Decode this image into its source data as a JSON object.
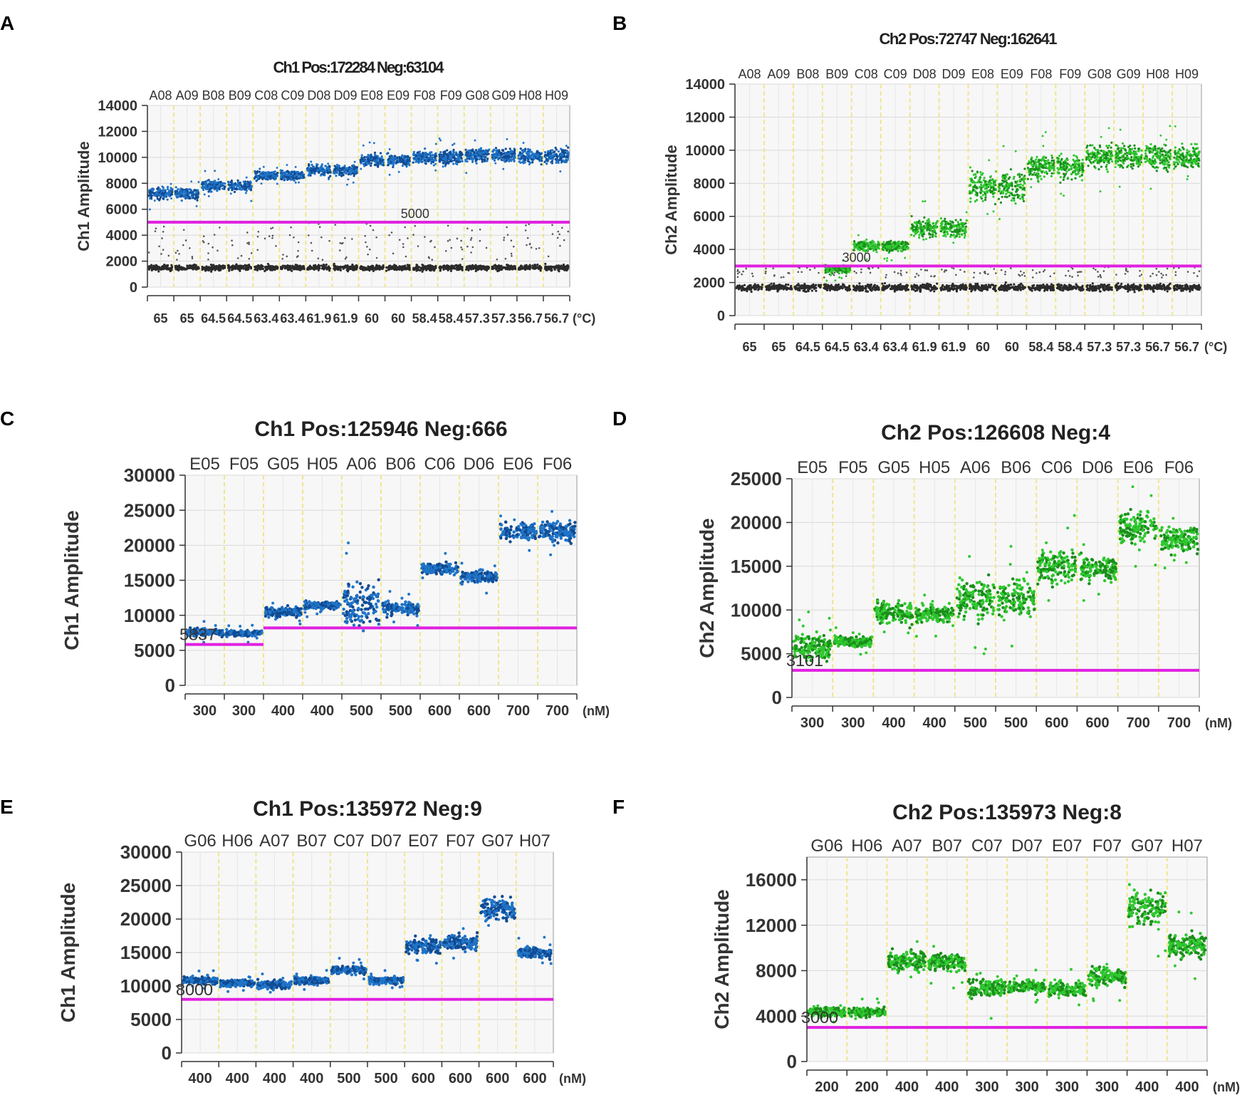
{
  "figure": {
    "panel_letters": [
      "A",
      "B",
      "C",
      "D",
      "E",
      "F"
    ]
  },
  "colors": {
    "ch1": "#1f74c8",
    "ch1_dark": "#114b93",
    "ch2": "#2fc82f",
    "ch2_dark": "#1a8e1a",
    "negative": "#2b2b2b",
    "threshold": "#e020e0",
    "well_line": "#f0e68c",
    "plot_bg": "#f7f7f7",
    "grid": "#d9d9d9"
  },
  "chart_data": [
    {
      "type": "scatter",
      "panel": "A",
      "channel": "ch1",
      "title": "Ch1 Pos:172284 Neg:63104",
      "ylabel": "Ch1 Amplitude",
      "x_unit": "(°C)",
      "ylim": [
        0,
        14000
      ],
      "yticks": [
        0,
        2000,
        4000,
        6000,
        8000,
        10000,
        12000,
        14000
      ],
      "wells": [
        "A08",
        "A09",
        "B08",
        "B09",
        "C08",
        "C09",
        "D08",
        "D09",
        "E08",
        "E09",
        "F08",
        "F09",
        "G08",
        "G09",
        "H08",
        "H09"
      ],
      "x_labels": [
        "65",
        "65",
        "64.5",
        "64.5",
        "63.4",
        "63.4",
        "61.9",
        "61.9",
        "60",
        "60",
        "58.4",
        "58.4",
        "57.3",
        "57.3",
        "56.7",
        "56.7"
      ],
      "threshold": 5000,
      "threshold_label": "5000",
      "pos_centers": [
        7200,
        7200,
        7800,
        7800,
        8600,
        8600,
        9000,
        9000,
        9800,
        9800,
        10000,
        10000,
        10200,
        10200,
        10100,
        10100
      ],
      "pos_spread": [
        1400,
        1400,
        1300,
        1300,
        1300,
        1300,
        1300,
        1300,
        1600,
        1600,
        1700,
        1700,
        1700,
        1700,
        1700,
        1700
      ],
      "neg_centers": [
        1500,
        1500,
        1500,
        1500,
        1500,
        1500,
        1500,
        1500,
        1500,
        1500,
        1500,
        1500,
        1500,
        1500,
        1500,
        1500
      ]
    },
    {
      "type": "scatter",
      "panel": "B",
      "channel": "ch2",
      "title": "Ch2 Pos:72747 Neg:162641",
      "ylabel": "Ch2 Amplitude",
      "x_unit": "(°C)",
      "ylim": [
        0,
        14000
      ],
      "yticks": [
        0,
        2000,
        4000,
        6000,
        8000,
        10000,
        12000,
        14000
      ],
      "wells": [
        "A08",
        "A09",
        "B08",
        "B09",
        "C08",
        "C09",
        "D08",
        "D09",
        "E08",
        "E09",
        "F08",
        "F09",
        "G08",
        "G09",
        "H08",
        "H09"
      ],
      "x_labels": [
        "65",
        "65",
        "64.5",
        "64.5",
        "63.4",
        "63.4",
        "61.9",
        "61.9",
        "60",
        "60",
        "58.4",
        "58.4",
        "57.3",
        "57.3",
        "56.7",
        "56.7"
      ],
      "threshold": 3000,
      "threshold_label": "3000",
      "pos_centers": [
        null,
        null,
        null,
        2800,
        4200,
        4200,
        5300,
        5300,
        7800,
        7800,
        9000,
        9000,
        9600,
        9600,
        9600,
        9600
      ],
      "pos_spread": [
        0,
        0,
        0,
        800,
        1000,
        1000,
        1800,
        1800,
        2800,
        2800,
        2400,
        2400,
        2400,
        2400,
        2600,
        2600
      ],
      "neg_centers": [
        1700,
        1700,
        1700,
        1700,
        1700,
        1700,
        1700,
        1700,
        1700,
        1700,
        1700,
        1700,
        1700,
        1700,
        1700,
        1700
      ]
    },
    {
      "type": "scatter",
      "panel": "C",
      "channel": "ch1",
      "title": "Ch1 Pos:125946 Neg:666",
      "ylabel": "Ch1 Amplitude",
      "x_unit": "(nM)",
      "ylim": [
        0,
        30000
      ],
      "yticks": [
        0,
        5000,
        10000,
        15000,
        20000,
        25000,
        30000
      ],
      "wells": [
        "E05",
        "F05",
        "G05",
        "H05",
        "A06",
        "B06",
        "C06",
        "D06",
        "E06",
        "F06"
      ],
      "x_labels": [
        "300",
        "300",
        "400",
        "400",
        "500",
        "500",
        "600",
        "600",
        "700",
        "700"
      ],
      "threshold_segments": [
        {
          "from_well": 0,
          "to_well": 2,
          "value": 5837
        },
        {
          "from_well": 2,
          "to_well": 10,
          "value": 8200
        }
      ],
      "threshold_label": "5837",
      "pos_centers": [
        7600,
        7400,
        10500,
        11400,
        11500,
        11000,
        16700,
        15400,
        22000,
        22000
      ],
      "pos_spread": [
        1800,
        1400,
        2400,
        2000,
        10000,
        3200,
        2600,
        2600,
        4200,
        4600
      ]
    },
    {
      "type": "scatter",
      "panel": "D",
      "channel": "ch2",
      "title": "Ch2 Pos:126608 Neg:4",
      "ylabel": "Ch2 Amplitude",
      "x_unit": "(nM)",
      "ylim": [
        0,
        25000
      ],
      "yticks": [
        0,
        5000,
        10000,
        15000,
        20000,
        25000
      ],
      "wells": [
        "E05",
        "F05",
        "G05",
        "H05",
        "A06",
        "B06",
        "C06",
        "D06",
        "E06",
        "F06"
      ],
      "x_labels": [
        "300",
        "300",
        "400",
        "400",
        "500",
        "500",
        "600",
        "600",
        "700",
        "700"
      ],
      "threshold": 3101,
      "threshold_label": "3101",
      "pos_centers": [
        5800,
        6400,
        9700,
        9500,
        11200,
        11500,
        15000,
        14800,
        19500,
        18000
      ],
      "pos_spread": [
        4800,
        2000,
        4000,
        3200,
        7200,
        7200,
        6600,
        5200,
        5800,
        5000
      ]
    },
    {
      "type": "scatter",
      "panel": "E",
      "channel": "ch1",
      "title": "Ch1 Pos:135972 Neg:9",
      "ylabel": "Ch1 Amplitude",
      "x_unit": "(nM)",
      "ylim": [
        0,
        30000
      ],
      "yticks": [
        0,
        5000,
        10000,
        15000,
        20000,
        25000,
        30000
      ],
      "wells": [
        "G06",
        "H06",
        "A07",
        "B07",
        "C07",
        "D07",
        "E07",
        "F07",
        "G07",
        "H07"
      ],
      "x_labels": [
        "400",
        "400",
        "400",
        "400",
        "500",
        "500",
        "600",
        "600",
        "600",
        "600"
      ],
      "threshold": 8000,
      "threshold_label": "8000",
      "pos_centers": [
        10800,
        10400,
        10200,
        10800,
        12400,
        10800,
        16000,
        16500,
        21500,
        15000
      ],
      "pos_spread": [
        2000,
        1800,
        2000,
        2000,
        2000,
        1800,
        3400,
        3800,
        5400,
        2800
      ]
    },
    {
      "type": "scatter",
      "panel": "F",
      "channel": "ch2",
      "title": "Ch2 Pos:135973 Neg:8",
      "ylabel": "Ch2 Amplitude",
      "x_unit": "(nM)",
      "ylim": [
        0,
        18000
      ],
      "yticks": [
        0,
        4000,
        8000,
        12000,
        16000
      ],
      "wells": [
        "G06",
        "H06",
        "A07",
        "B07",
        "C07",
        "D07",
        "E07",
        "F07",
        "G07",
        "H07"
      ],
      "x_labels": [
        "200",
        "200",
        "400",
        "400",
        "300",
        "300",
        "300",
        "300",
        "400",
        "400"
      ],
      "threshold": 3000,
      "threshold_label": "3000",
      "pos_centers": [
        4400,
        4300,
        8900,
        8700,
        6500,
        6600,
        6400,
        7500,
        13500,
        10200
      ],
      "pos_spread": [
        1400,
        1400,
        2800,
        2600,
        3000,
        1800,
        2400,
        2600,
        5000,
        3600
      ]
    }
  ]
}
